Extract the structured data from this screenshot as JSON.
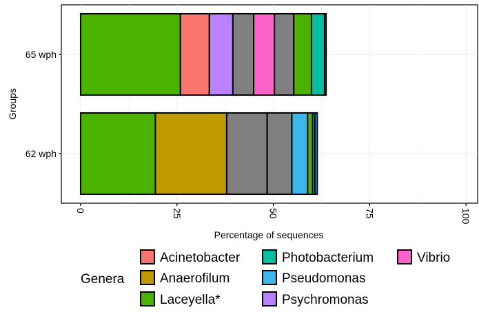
{
  "chart_data": {
    "type": "bar",
    "orientation": "horizontal",
    "stacked": true,
    "xlabel": "Percentage of  sequences",
    "ylabel": "Groups",
    "xlim": [
      -5,
      103
    ],
    "xticks": [
      0,
      25,
      50,
      75,
      100
    ],
    "xtick_labels": [
      "0",
      "25",
      "50",
      "75",
      "100"
    ],
    "grid": true,
    "legend_position": "bottom",
    "legend_title": "Genera",
    "categories": [
      "65 wph",
      "62 wph"
    ],
    "genera": [
      {
        "name": "Acinetobacter",
        "color": "#F8766D"
      },
      {
        "name": "Anaerofilum",
        "color": "#C09B00"
      },
      {
        "name": "Laceyella*",
        "color": "#4BB200"
      },
      {
        "name": "Photobacterium",
        "color": "#00C19F"
      },
      {
        "name": "Pseudomonas",
        "color": "#3DB7E9"
      },
      {
        "name": "Psychromonas",
        "color": "#B983FF"
      },
      {
        "name": "Vibrio",
        "color": "#FF61CC"
      }
    ],
    "other_color": "#808080",
    "stacks": [
      {
        "group": "65 wph",
        "segments": [
          {
            "genus": "Laceyella*",
            "value": 25.9
          },
          {
            "genus": "Acinetobacter",
            "value": 7.5
          },
          {
            "genus": "Psychromonas",
            "value": 6.1
          },
          {
            "genus": "Other",
            "value": 5.4
          },
          {
            "genus": "Vibrio",
            "value": 5.4
          },
          {
            "genus": "Other",
            "value": 5.0
          },
          {
            "genus": "Laceyella*",
            "value": 4.6
          },
          {
            "genus": "Photobacterium",
            "value": 3.4
          },
          {
            "genus": "Pseudomonas",
            "value": 0.4
          }
        ]
      },
      {
        "group": "62 wph",
        "segments": [
          {
            "genus": "Laceyella*",
            "value": 19.4
          },
          {
            "genus": "Anaerofilum",
            "value": 18.5
          },
          {
            "genus": "Other",
            "value": 10.5
          },
          {
            "genus": "Other",
            "value": 6.4
          },
          {
            "genus": "Pseudomonas",
            "value": 4.1
          },
          {
            "genus": "Laceyella*",
            "value": 1.3
          },
          {
            "genus": "Photobacterium",
            "value": 0.6
          },
          {
            "genus": "Pseudomonas",
            "value": 0.6
          }
        ]
      }
    ]
  }
}
